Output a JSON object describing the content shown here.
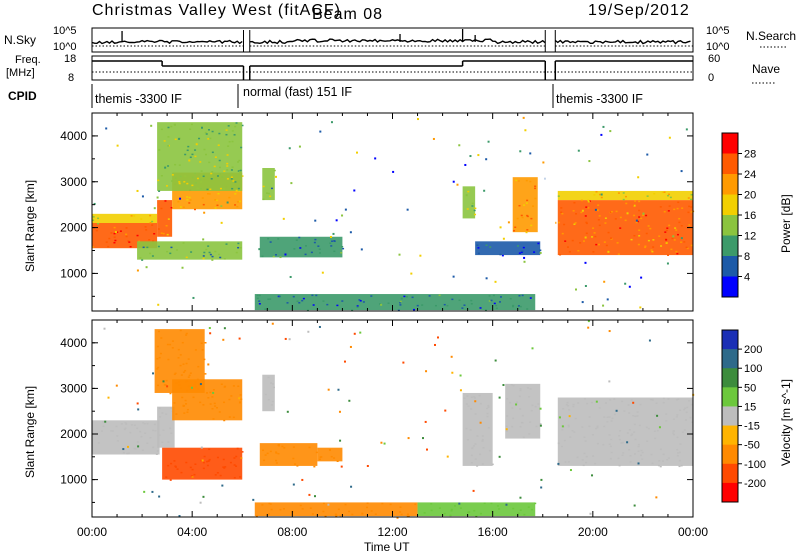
{
  "header": {
    "title": "Christmas Valley West (fitACF)",
    "beam": "Beam 08",
    "date": "19/Sep/2012"
  },
  "top_panel": {
    "left_label": "N.Sky",
    "right_label": "N.Search",
    "left_ticks": [
      "10^5",
      "10^0"
    ],
    "right_ticks": [
      "10^5",
      "10^0"
    ]
  },
  "freq_panel": {
    "left_label_1": "Freq.",
    "left_label_2": "[MHz]",
    "right_label": "Nave",
    "left_ticks": [
      "18",
      "8"
    ],
    "right_ticks": [
      "60",
      "0"
    ]
  },
  "cpid": {
    "label": "CPID",
    "segments": [
      {
        "text": "themis -3300 IF",
        "start_hour": 0,
        "end_hour": 6
      },
      {
        "text": "normal (fast) 151 IF",
        "start_hour": 6.3,
        "end_hour": 18.1
      },
      {
        "text": "themis -3300 IF",
        "start_hour": 18.5,
        "end_hour": 24
      }
    ]
  },
  "power_colorbar": {
    "title": "Power [dB]",
    "ticks": [
      "28",
      "24",
      "20",
      "16",
      "12",
      "8",
      "4"
    ],
    "colors": [
      "#ff0000",
      "#ff5a00",
      "#ff9a00",
      "#f2cf00",
      "#8bc43f",
      "#3c9a6a",
      "#1c5aa8",
      "#0000ff"
    ]
  },
  "velocity_colorbar": {
    "title": "Velocity [m s^-1]",
    "ticks": [
      "200",
      "100",
      "50",
      "15",
      "-15",
      "-50",
      "-100",
      "-200"
    ],
    "colors": [
      "#1a2fb5",
      "#2e6a8a",
      "#3c8c3c",
      "#6cc83c",
      "#bdbdbd",
      "#ffb400",
      "#ff8a00",
      "#ff4a00",
      "#ff0000"
    ]
  },
  "axes": {
    "ylabel": "Slant Range [km]",
    "xlabel": "Time UT",
    "x_ticks": [
      "00:00",
      "04:00",
      "08:00",
      "12:00",
      "16:00",
      "20:00",
      "00:00"
    ],
    "y_ticks": [
      "1000",
      "2000",
      "3000",
      "4000"
    ]
  },
  "chart_data": [
    {
      "type": "heatmap",
      "name": "Power",
      "xlabel": "Time UT",
      "ylabel": "Slant Range [km]",
      "xlim_hours": [
        0,
        24
      ],
      "ylim_km": [
        180,
        4500
      ],
      "color_scale": "Power [dB]",
      "regions": [
        {
          "t0": 0.0,
          "t1": 2.6,
          "r0": 1550,
          "r1": 2100,
          "value": 28
        },
        {
          "t0": 0.0,
          "t1": 2.6,
          "r0": 2100,
          "r1": 2300,
          "value": 20
        },
        {
          "t0": 2.6,
          "t1": 3.2,
          "r0": 1800,
          "r1": 2600,
          "value": 26
        },
        {
          "t0": 3.2,
          "t1": 6.0,
          "r0": 2400,
          "r1": 3200,
          "value": 22
        },
        {
          "t0": 2.6,
          "t1": 6.0,
          "r0": 2800,
          "r1": 4300,
          "value": 16
        },
        {
          "t0": 1.8,
          "t1": 6.0,
          "r0": 1300,
          "r1": 1700,
          "value": 14
        },
        {
          "t0": 6.7,
          "t1": 10.0,
          "r0": 1350,
          "r1": 1800,
          "value": 10
        },
        {
          "t0": 6.8,
          "t1": 7.3,
          "r0": 2600,
          "r1": 3300,
          "value": 14
        },
        {
          "t0": 6.5,
          "t1": 17.7,
          "r0": 200,
          "r1": 550,
          "value": 10
        },
        {
          "t0": 14.8,
          "t1": 15.3,
          "r0": 2200,
          "r1": 2900,
          "value": 16
        },
        {
          "t0": 15.3,
          "t1": 17.9,
          "r0": 1400,
          "r1": 1700,
          "value": 8
        },
        {
          "t0": 16.8,
          "t1": 17.8,
          "r0": 1900,
          "r1": 3100,
          "value": 24
        },
        {
          "t0": 18.6,
          "t1": 24.0,
          "r0": 1400,
          "r1": 2600,
          "value": 26
        },
        {
          "t0": 18.6,
          "t1": 24.0,
          "r0": 2600,
          "r1": 2800,
          "value": 20
        }
      ]
    },
    {
      "type": "heatmap",
      "name": "Velocity",
      "xlabel": "Time UT",
      "ylabel": "Slant Range [km]",
      "xlim_hours": [
        0,
        24
      ],
      "ylim_km": [
        180,
        4500
      ],
      "color_scale": "Velocity [m s^-1]",
      "regions": [
        {
          "t0": 0.0,
          "t1": 2.7,
          "r0": 1550,
          "r1": 2300,
          "value": 0
        },
        {
          "t0": 2.6,
          "t1": 3.3,
          "r0": 1700,
          "r1": 2600,
          "value": 0
        },
        {
          "t0": 3.2,
          "t1": 6.0,
          "r0": 2300,
          "r1": 3200,
          "value": -60
        },
        {
          "t0": 2.5,
          "t1": 4.5,
          "r0": 2900,
          "r1": 4300,
          "value": -60
        },
        {
          "t0": 2.8,
          "t1": 6.0,
          "r0": 1000,
          "r1": 1700,
          "value": -180
        },
        {
          "t0": 6.7,
          "t1": 9.0,
          "r0": 1300,
          "r1": 1800,
          "value": -90
        },
        {
          "t0": 9.0,
          "t1": 10.0,
          "r0": 1400,
          "r1": 1700,
          "value": -60
        },
        {
          "t0": 6.8,
          "t1": 7.3,
          "r0": 2500,
          "r1": 3300,
          "value": 0
        },
        {
          "t0": 6.5,
          "t1": 13.0,
          "r0": 200,
          "r1": 500,
          "value": -60
        },
        {
          "t0": 13.0,
          "t1": 17.7,
          "r0": 200,
          "r1": 500,
          "value": 30
        },
        {
          "t0": 14.8,
          "t1": 16.0,
          "r0": 1300,
          "r1": 2900,
          "value": 0
        },
        {
          "t0": 16.5,
          "t1": 17.9,
          "r0": 1900,
          "r1": 3100,
          "value": 0
        },
        {
          "t0": 18.6,
          "t1": 24.0,
          "r0": 1300,
          "r1": 2800,
          "value": 0
        }
      ]
    }
  ]
}
